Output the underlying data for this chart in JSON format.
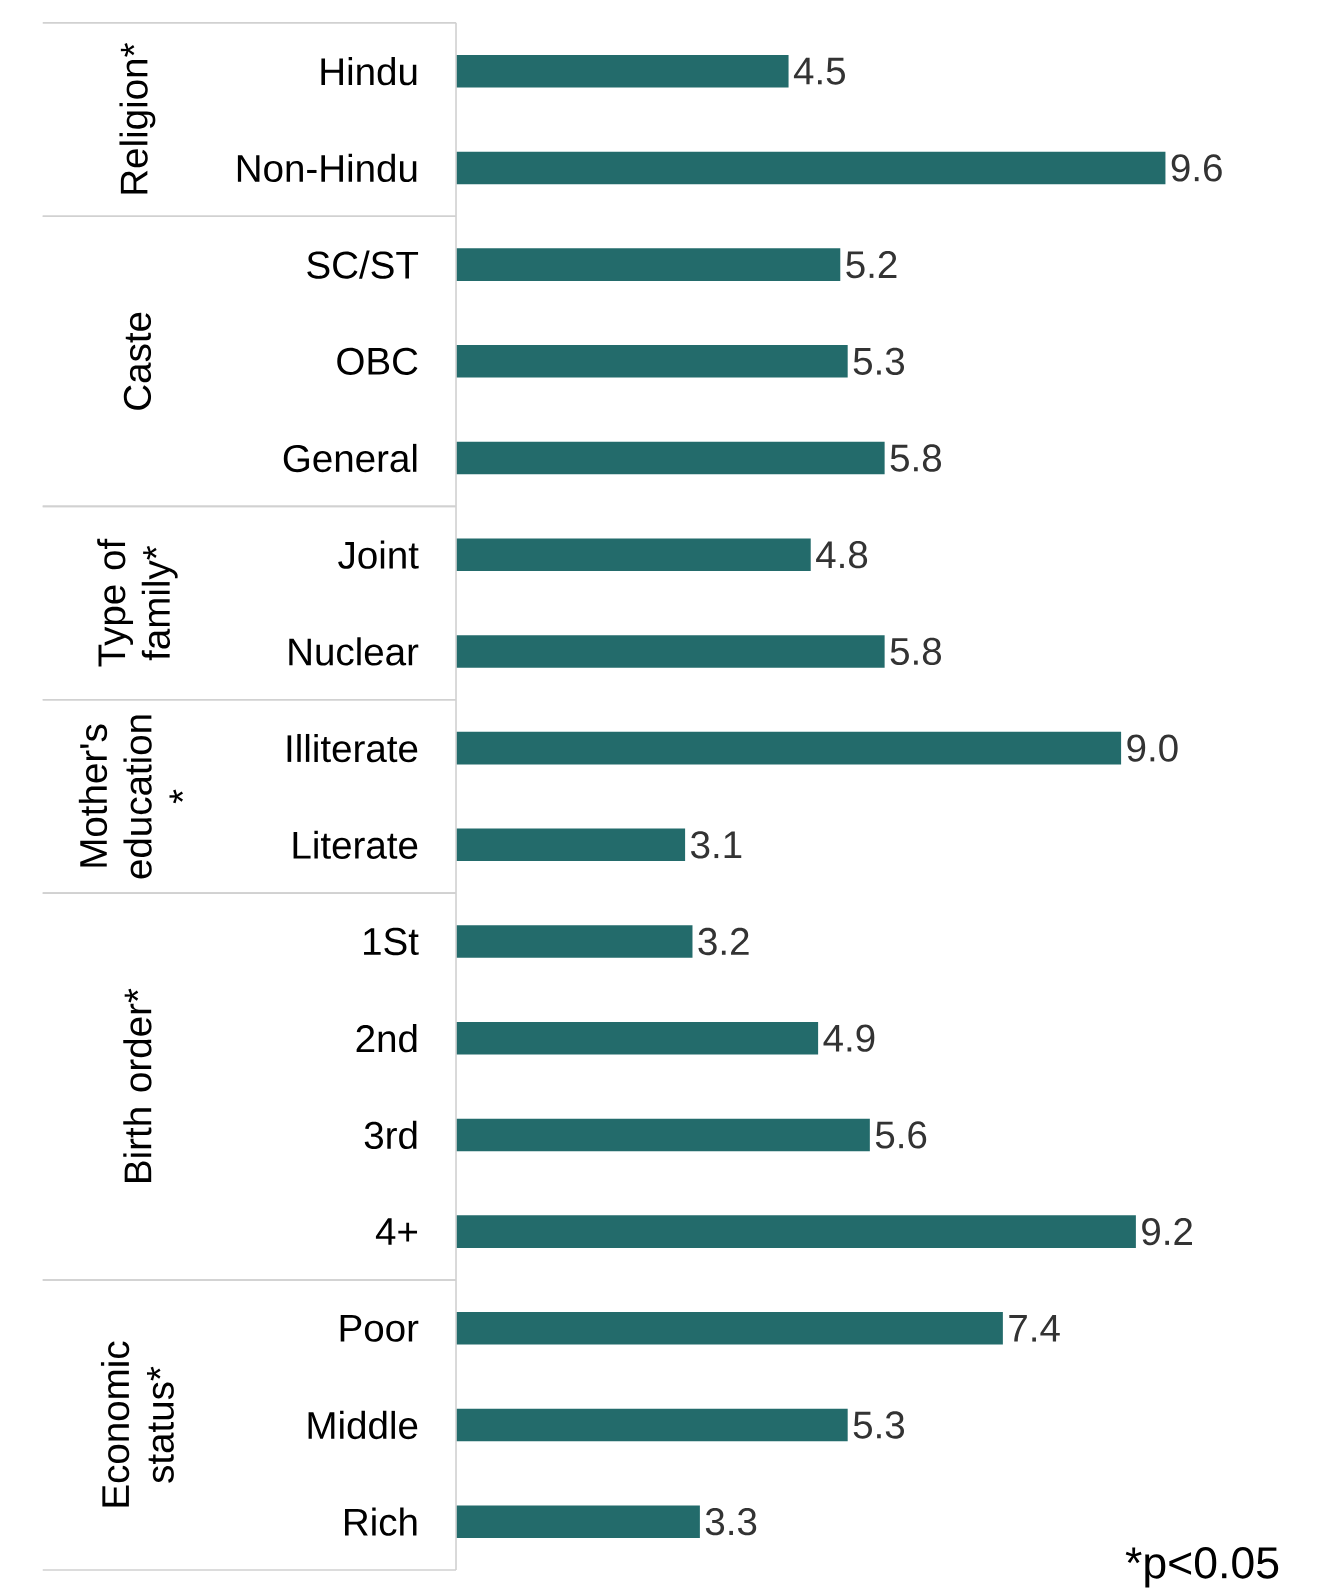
{
  "chart_data": {
    "type": "bar",
    "orientation": "horizontal",
    "categories": [
      "Hindu",
      "Non-Hindu",
      "SC/ST",
      "OBC",
      "General",
      "Joint",
      "Nuclear",
      "Illiterate",
      "Literate",
      "1St",
      "2nd",
      "3rd",
      "4+",
      "Poor",
      "Middle",
      "Rich"
    ],
    "values": [
      4.5,
      9.6,
      5.2,
      5.3,
      5.8,
      4.8,
      5.8,
      9.0,
      3.1,
      3.2,
      4.9,
      5.6,
      9.2,
      7.4,
      5.3,
      3.3
    ],
    "value_labels": [
      "4.5",
      "9.6",
      "5.2",
      "5.3",
      "5.8",
      "4.8",
      "5.8",
      "9.0",
      "3.1",
      "3.2",
      "4.9",
      "5.6",
      "9.2",
      "7.4",
      "5.3",
      "3.3"
    ],
    "color": "#236b6b",
    "annotations": [
      "Religion*",
      "Caste",
      "Type of family*",
      "Mother's education *",
      "Birth order*",
      "Economic status*",
      "*p<0.05"
    ]
  }
}
